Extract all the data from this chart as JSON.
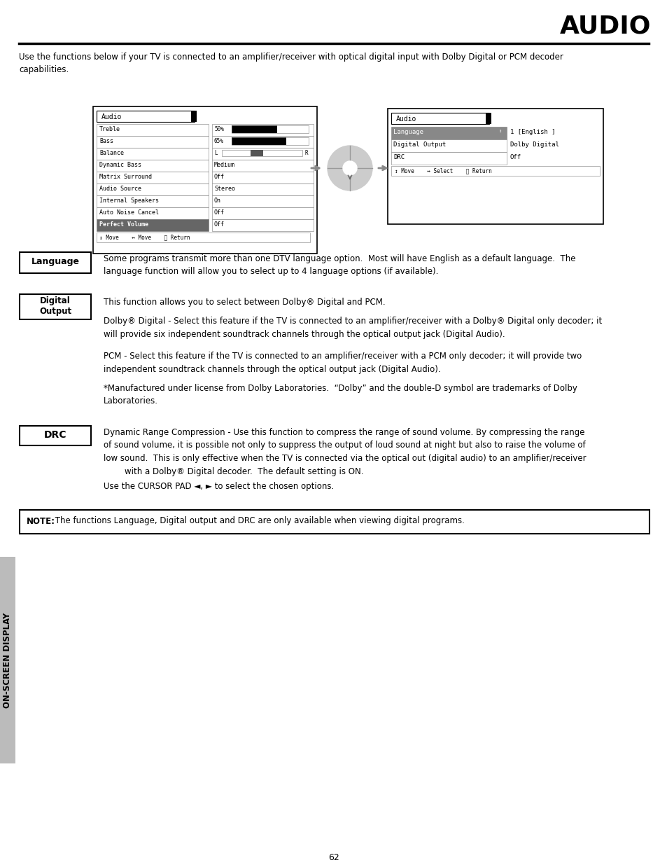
{
  "title": "AUDIO",
  "intro_text": "Use the functions below if your TV is connected to an amplifier/receiver with optical digital input with Dolby Digital or PCM decoder\ncapabilities.",
  "sidebar_text": "ON-SCREEN DISPLAY",
  "page_number": "62",
  "language_label": "Language",
  "language_desc": "Some programs transmit more than one DTV language option.  Most will have English as a default language.  The\nlanguage function will allow you to select up to 4 language options (if available).",
  "digital_label": "Digital\nOutput",
  "digital_desc1": "This function allows you to select between Dolby® Digital and PCM.",
  "digital_desc2": "Dolby® Digital - Select this feature if the TV is connected to an amplifier/receiver with a Dolby® Digital only decoder; it\nwill provide six independent soundtrack channels through the optical output jack (Digital Audio).",
  "digital_desc3": "PCM - Select this feature if the TV is connected to an amplifier/receiver with a PCM only decoder; it will provide two\nindependent soundtrack channels through the optical output jack (Digital Audio).",
  "digital_desc4": "*Manufactured under license from Dolby Laboratories.  “Dolby” and the double-D symbol are trademarks of Dolby\nLaboratories.",
  "drc_label": "DRC",
  "drc_desc1": "Dynamic Range Compression - Use this function to compress the range of sound volume. By compressing the range\nof sound volume, it is possible not only to suppress the output of loud sound at night but also to raise the volume of\nlow sound.  This is only effective when the TV is connected via the optical out (digital audio) to an amplifier/receiver\n        with a Dolby® Digital decoder.  The default setting is ON.",
  "drc_desc2": "Use the CURSOR PAD ◄, ► to select the chosen options.",
  "note_text_bold": "NOTE:",
  "note_text_rest": " The functions Language, Digital output and DRC are only available when viewing digital programs.",
  "bg_color": "#ffffff",
  "text_color": "#000000"
}
